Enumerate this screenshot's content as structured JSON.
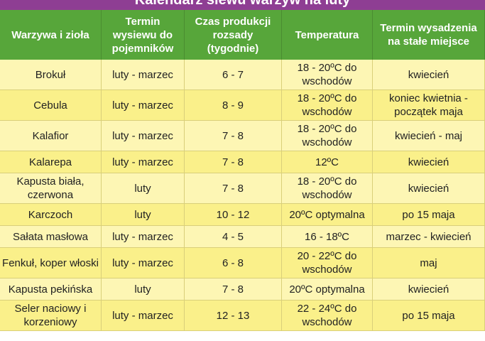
{
  "title": "Kalendarz siewu warzyw na luty",
  "headers": [
    "Warzywa i zioła",
    "Termin wysiewu do pojemników",
    "Czas produkcji rozsady (tygodnie)",
    "Temperatura",
    "Termin wysadzenia na stałe miejsce"
  ],
  "rows": [
    [
      "Brokuł",
      "luty - marzec",
      "6 - 7",
      "18 - 20ºC do wschodów",
      "kwiecień"
    ],
    [
      "Cebula",
      "luty - marzec",
      "8 - 9",
      "18 - 20ºC do wschodów",
      "koniec kwietnia - początek maja"
    ],
    [
      "Kalafior",
      "luty - marzec",
      "7 - 8",
      "18 - 20ºC do wschodów",
      "kwiecień - maj"
    ],
    [
      "Kalarepa",
      "luty - marzec",
      "7 - 8",
      "12ºC",
      "kwiecień"
    ],
    [
      "Kapusta biała, czerwona",
      "luty",
      "7 - 8",
      "18 - 20ºC do wschodów",
      "kwiecień"
    ],
    [
      "Karczoch",
      "luty",
      "10 - 12",
      "20ºC optymalna",
      "po 15 maja"
    ],
    [
      "Sałata masłowa",
      "luty - marzec",
      "4 - 5",
      "16 - 18ºC",
      "marzec - kwiecień"
    ],
    [
      "Fenkuł, koper włoski",
      "luty - marzec",
      "6 - 8",
      "20 - 22ºC do wschodów",
      "maj"
    ],
    [
      "Kapusta pekińska",
      "luty",
      "7 - 8",
      "20ºC optymalna",
      "kwiecień"
    ],
    [
      "Seler naciowy i korzeniowy",
      "luty - marzec",
      "12 - 13",
      "22 - 24ºC do wschodów",
      "po 15 maja"
    ]
  ]
}
